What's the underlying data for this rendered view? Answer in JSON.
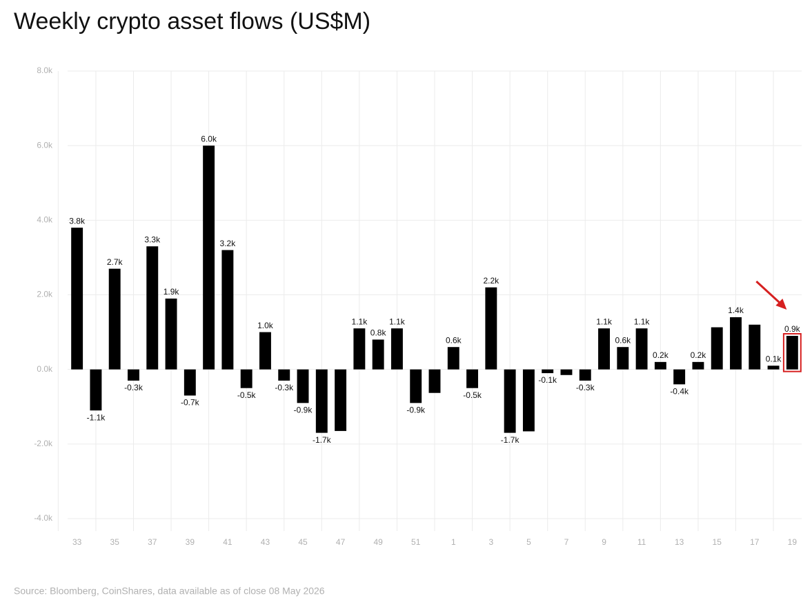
{
  "chart_data": {
    "type": "bar",
    "title": "Weekly crypto asset flows (US$M)",
    "source": "Source: Bloomberg, CoinShares, data available as of close 08 May 2026",
    "categories": [
      "33",
      null,
      "35",
      null,
      "37",
      null,
      "39",
      null,
      "41",
      null,
      "43",
      null,
      "45",
      null,
      "47",
      null,
      "49",
      null,
      "51",
      null,
      "1",
      null,
      "3",
      null,
      "5",
      null,
      "7",
      null,
      "9",
      null,
      "11",
      null,
      "13",
      null,
      "15",
      null,
      "17",
      null,
      "19"
    ],
    "values": [
      3800,
      -1100,
      2700,
      -300,
      3300,
      1900,
      -700,
      6000,
      3200,
      -500,
      1000,
      -300,
      -900,
      -1700,
      -1650,
      1100,
      800,
      1100,
      -900,
      -630,
      600,
      -500,
      2200,
      -1700,
      -1660,
      -100,
      -150,
      -300,
      1100,
      600,
      1100,
      200,
      -400,
      200,
      1130,
      1400,
      1200,
      100,
      900
    ],
    "value_labels": [
      "3.8k",
      "-1.1k",
      "2.7k",
      "-0.3k",
      "3.3k",
      "1.9k",
      "-0.7k",
      "6.0k",
      "3.2k",
      "-0.5k",
      "1.0k",
      "-0.3k",
      "-0.9k",
      "-1.7k",
      null,
      "1.1k",
      "0.8k",
      "1.1k",
      "-0.9k",
      null,
      "0.6k",
      "-0.5k",
      "2.2k",
      "-1.7k",
      null,
      "-0.1k",
      null,
      "-0.3k",
      "1.1k",
      "0.6k",
      "1.1k",
      "0.2k",
      "-0.4k",
      "0.2k",
      null,
      "1.4k",
      null,
      "0.1k",
      "0.9k"
    ],
    "color": "#000000",
    "ylim": [
      -4000,
      8000
    ],
    "yticks": [
      {
        "value": -4000,
        "label": "-4.0k"
      },
      {
        "value": -2000,
        "label": "-2.0k"
      },
      {
        "value": 0,
        "label": "0.0k"
      },
      {
        "value": 2000,
        "label": "2.0k"
      },
      {
        "value": 4000,
        "label": "4.0k"
      },
      {
        "value": 6000,
        "label": "6.0k"
      },
      {
        "value": 8000,
        "label": "8.0k"
      }
    ],
    "grid": true
  }
}
